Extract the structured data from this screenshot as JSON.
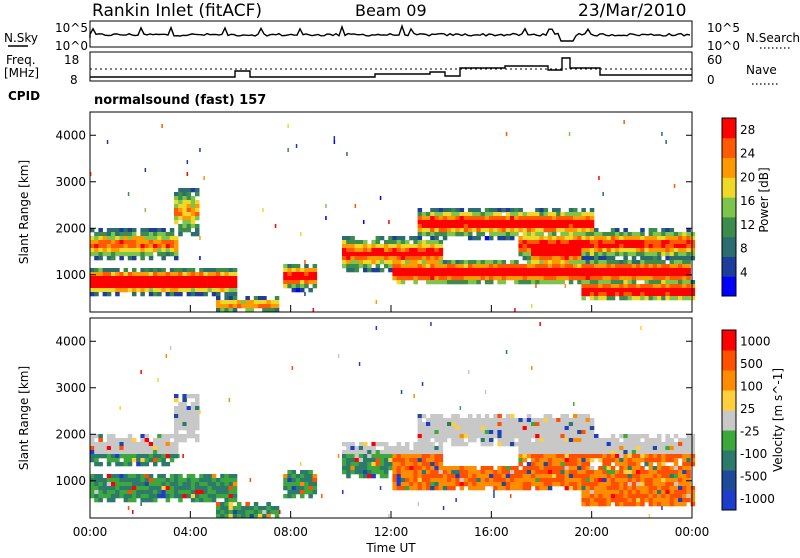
{
  "header": {
    "station": "Rankin Inlet (fitACF)",
    "beam": "Beam 09",
    "date": "23/Mar/2010"
  },
  "status_strip": {
    "nsky_label": "N.Sky",
    "nsky_ticks": [
      "10^5",
      "10^0"
    ],
    "nsearch_label": "N.Search",
    "nsearch_ticks": [
      "10^5",
      "10^0"
    ],
    "freq_label": "Freq.",
    "freq_unit": "[MHz]",
    "freq_ticks": [
      "18",
      "8"
    ],
    "nave_label": "Nave",
    "nave_ticks": [
      "60",
      "0"
    ],
    "cpid_label": "CPID",
    "cpid_value": "normalsound (fast) 157"
  },
  "colors": {
    "power": [
      "#0000ff",
      "#1e3c9c",
      "#2c6e70",
      "#3c8c4c",
      "#7cc44c",
      "#f0d828",
      "#ff9900",
      "#ff5a00",
      "#ff0000"
    ],
    "velocity": [
      "#1e3ccc",
      "#1e4a9c",
      "#2c7a6c",
      "#3ca83c",
      "#c8c8c8",
      "#ffd03c",
      "#ff8c00",
      "#ff5000",
      "#ff0000"
    ]
  },
  "chart_data": [
    {
      "type": "heatmap",
      "name": "Power",
      "ylabel": "Slant Range [km]",
      "yticks": [
        "1000",
        "2000",
        "3000",
        "4000"
      ],
      "ylim": [
        200,
        4500
      ],
      "xlim_hours": [
        0,
        24
      ],
      "colorbar_label": "Power [dB]",
      "colorbar_ticks": [
        "4",
        "8",
        "12",
        "16",
        "20",
        "24",
        "28"
      ],
      "colorbar_range": [
        0,
        30
      ]
    },
    {
      "type": "heatmap",
      "name": "Velocity",
      "ylabel": "Slant Range [km]",
      "yticks": [
        "1000",
        "2000",
        "3000",
        "4000"
      ],
      "ylim": [
        200,
        4500
      ],
      "xlim_hours": [
        0,
        24
      ],
      "xticks": [
        "00:00",
        "04:00",
        "08:00",
        "12:00",
        "16:00",
        "20:00",
        "00:00"
      ],
      "xlabel": "Time UT",
      "colorbar_label": "Velocity [m s^-1]",
      "colorbar_ticks": [
        "1000",
        "500",
        "100",
        "25",
        "-25",
        "-100",
        "-500",
        "-1000"
      ]
    }
  ]
}
